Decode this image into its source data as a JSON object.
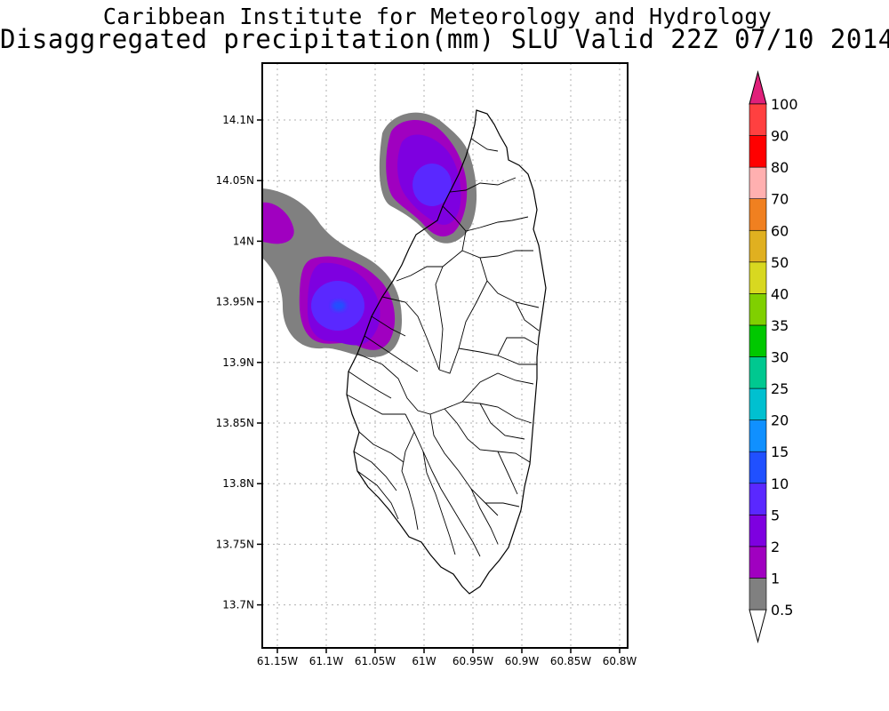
{
  "title_line1": "Caribbean Institute for Meteorology and Hydrology",
  "title_line2": "Disaggregated precipitation(mm) SLU Valid 22Z 07/10 2014",
  "lat_labels": [
    "14.1N",
    "14.05N",
    "14N",
    "13.95N",
    "13.9N",
    "13.85N",
    "13.8N",
    "13.75N",
    "13.7N"
  ],
  "lon_labels": [
    "61.15W",
    "61.1W",
    "61.05W",
    "61W",
    "60.95W",
    "60.9W",
    "60.85W",
    "60.8W"
  ],
  "legend": {
    "labels": [
      "0.5",
      "1",
      "2",
      "5",
      "10",
      "15",
      "20",
      "25",
      "30",
      "35",
      "40",
      "50",
      "60",
      "70",
      "80",
      "90",
      "100"
    ],
    "colors": [
      "#808080",
      "#a000c0",
      "#7e00e0",
      "#5a28ff",
      "#2050ff",
      "#1090ff",
      "#00c0d0",
      "#00c890",
      "#00c800",
      "#80d000",
      "#d8d820",
      "#e0b020",
      "#f08020",
      "#ffb0b0",
      "#ff0000",
      "#ff4040"
    ],
    "top_arrow_color": "#e0207a",
    "bottom_arrow_color": "#ffffff"
  },
  "colors": {
    "gray": "#808080",
    "magenta": "#a000c0",
    "purple": "#7e00e0",
    "blue": "#5a28ff",
    "deepblue": "#2050ff"
  }
}
